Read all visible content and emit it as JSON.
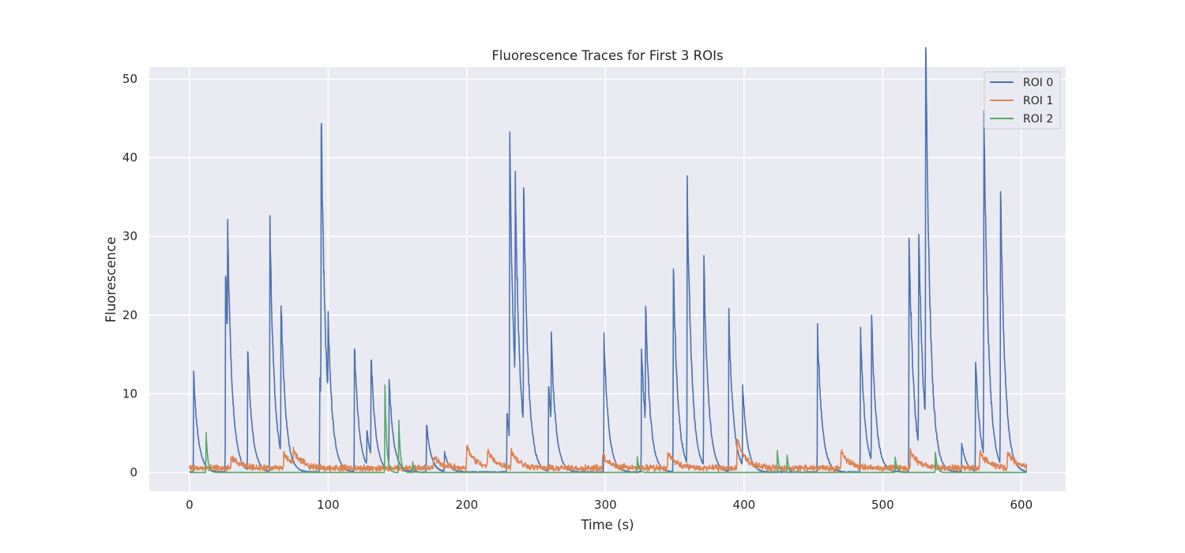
{
  "chart_data": {
    "type": "line",
    "title": "Fluorescence Traces for First 3 ROIs",
    "xlabel": "Time (s)",
    "ylabel": "Fluorescence",
    "xlim": [
      -29,
      632
    ],
    "ylim": [
      -2.4,
      51.5
    ],
    "xticks": [
      0,
      100,
      200,
      300,
      400,
      500,
      600
    ],
    "yticks": [
      0,
      10,
      20,
      30,
      40,
      50
    ],
    "grid": true,
    "legend_position": "top-right",
    "series": [
      {
        "name": "ROI 0",
        "color": "#4c72b0",
        "events": [
          [
            3,
            12.5
          ],
          [
            26,
            25.3
          ],
          [
            27.5,
            15
          ],
          [
            42,
            15.3
          ],
          [
            58,
            31.2
          ],
          [
            66,
            19.5
          ],
          [
            94,
            12.5
          ],
          [
            95,
            36.7
          ],
          [
            100,
            10
          ],
          [
            119,
            16
          ],
          [
            128,
            4.5
          ],
          [
            131,
            12.6
          ],
          [
            144,
            11.3
          ],
          [
            171,
            6.1
          ],
          [
            184,
            2.4
          ],
          [
            229,
            7.7
          ],
          [
            231,
            37
          ],
          [
            235,
            26
          ],
          [
            241,
            31.2
          ],
          [
            259,
            11
          ],
          [
            261,
            11
          ],
          [
            299,
            17
          ],
          [
            326,
            15.8
          ],
          [
            329,
            15.2
          ],
          [
            349,
            26.2
          ],
          [
            359,
            35.3
          ],
          [
            371,
            26.3
          ],
          [
            389,
            20
          ],
          [
            399,
            10.2
          ],
          [
            453,
            18
          ],
          [
            484,
            17.7
          ],
          [
            492,
            18
          ],
          [
            519,
            30.8
          ],
          [
            526,
            27.7
          ],
          [
            531,
            49.1
          ],
          [
            557,
            3.6
          ],
          [
            567,
            14.4
          ],
          [
            573,
            44.7
          ],
          [
            585,
            34.7
          ]
        ]
      },
      {
        "name": "ROI 1",
        "color": "#dd8452",
        "events": [
          [
            30,
            1.4
          ],
          [
            68,
            1.9
          ],
          [
            75,
            1.7
          ],
          [
            176,
            1.5
          ],
          [
            200,
            2.7
          ],
          [
            215,
            2.0
          ],
          [
            232,
            2.1
          ],
          [
            298,
            1.6
          ],
          [
            345,
            2.0
          ],
          [
            395,
            3.6
          ],
          [
            470,
            2.1
          ],
          [
            520,
            2.1
          ],
          [
            570,
            2.2
          ],
          [
            590,
            2.0
          ]
        ]
      },
      {
        "name": "ROI 2",
        "color": "#55a868",
        "events": [
          [
            12,
            5.0
          ],
          [
            141,
            10.9
          ],
          [
            151,
            6.4
          ],
          [
            161,
            1.4
          ],
          [
            323,
            1.9
          ],
          [
            424,
            2.7
          ],
          [
            431,
            2.3
          ],
          [
            509,
            2.0
          ],
          [
            538,
            2.6
          ]
        ]
      }
    ]
  }
}
